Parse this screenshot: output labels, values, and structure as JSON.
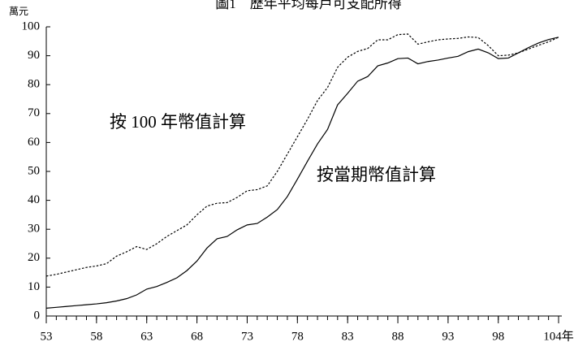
{
  "chart_data": {
    "type": "line",
    "title": "圖1　歷年平均每戶可支配所得",
    "y_unit": "萬元",
    "x": [
      53,
      54,
      55,
      56,
      57,
      58,
      59,
      60,
      61,
      62,
      63,
      64,
      65,
      66,
      67,
      68,
      69,
      70,
      71,
      72,
      73,
      74,
      75,
      76,
      77,
      78,
      79,
      80,
      81,
      82,
      83,
      84,
      85,
      86,
      87,
      88,
      89,
      90,
      91,
      92,
      93,
      94,
      95,
      96,
      97,
      98,
      99,
      100,
      101,
      102,
      103,
      104
    ],
    "series": [
      {
        "name": "按當期幣值計算",
        "color": "#000000",
        "dash": false,
        "values": [
          2.7,
          3.0,
          3.3,
          3.6,
          3.9,
          4.2,
          4.6,
          5.2,
          6.0,
          7.3,
          9.3,
          10.2,
          11.6,
          13.2,
          15.7,
          19.0,
          23.5,
          26.7,
          27.5,
          29.8,
          31.5,
          32.0,
          34.2,
          36.8,
          41.3,
          47.3,
          53.5,
          59.5,
          64.5,
          73.0,
          77.0,
          81.2,
          82.8,
          86.5,
          87.5,
          89.0,
          89.2,
          87.2,
          88.0,
          88.5,
          89.2,
          89.8,
          91.4,
          92.3,
          91.0,
          89.0,
          89.2,
          91.0,
          92.8,
          94.4,
          95.6,
          96.4
        ]
      },
      {
        "name": "按 100 年幣值計算",
        "color": "#000000",
        "dash": true,
        "values": [
          13.8,
          14.4,
          15.2,
          16.0,
          16.8,
          17.3,
          18.1,
          20.7,
          22.2,
          24.0,
          23.0,
          25.0,
          27.5,
          29.5,
          31.5,
          35.0,
          38.0,
          39.0,
          39.2,
          41.0,
          43.3,
          43.7,
          45.0,
          50.0,
          56.0,
          62.0,
          68.0,
          74.5,
          79.0,
          86.0,
          89.5,
          91.5,
          92.5,
          95.5,
          95.5,
          97.3,
          97.5,
          94.0,
          94.8,
          95.5,
          95.8,
          96.0,
          96.5,
          96.3,
          93.5,
          90.0,
          90.2,
          91.0,
          92.3,
          93.6,
          94.8,
          96.4
        ]
      }
    ],
    "xlim": [
      53,
      104
    ],
    "xticks": [
      53,
      58,
      63,
      68,
      73,
      78,
      83,
      88,
      93,
      98,
      {
        "value": 104,
        "label": "104年"
      }
    ],
    "ylim": [
      0,
      100
    ],
    "yticks": [
      0,
      10,
      20,
      30,
      40,
      50,
      60,
      70,
      80,
      90,
      100
    ],
    "grid": false
  }
}
